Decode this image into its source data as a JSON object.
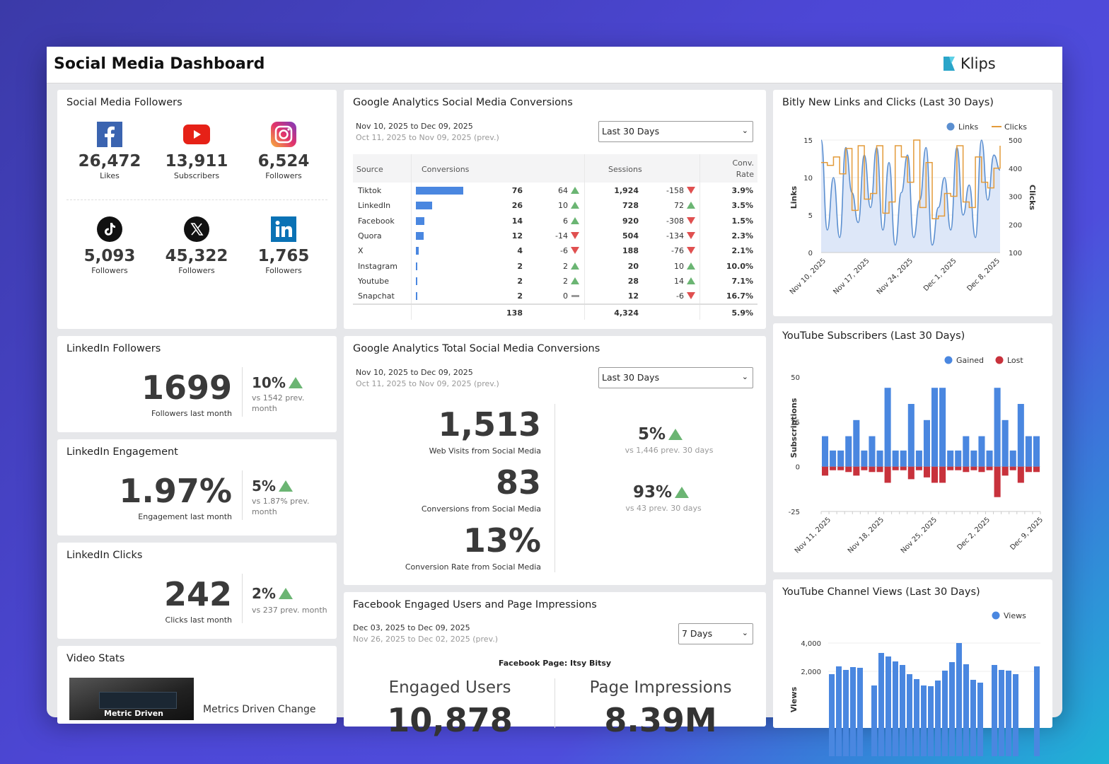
{
  "app": {
    "title": "Social Media Dashboard",
    "brand": "Klips"
  },
  "followers": {
    "title": "Social Media Followers",
    "items": [
      {
        "icon": "facebook-icon",
        "count": "26,472",
        "label": "Likes"
      },
      {
        "icon": "youtube-icon",
        "count": "13,911",
        "label": "Subscribers"
      },
      {
        "icon": "instagram-icon",
        "count": "6,524",
        "label": "Followers"
      },
      {
        "icon": "tiktok-icon",
        "count": "5,093",
        "label": "Followers"
      },
      {
        "icon": "x-icon",
        "count": "45,322",
        "label": "Followers"
      },
      {
        "icon": "linkedin-icon",
        "count": "1,765",
        "label": "Followers"
      }
    ]
  },
  "li_followers": {
    "title": "LinkedIn Followers",
    "value": "1699",
    "sub": "Followers last month",
    "pct": "10%",
    "vs": "vs 1542 prev. month"
  },
  "li_engagement": {
    "title": "LinkedIn Engagement",
    "value": "1.97%",
    "sub": "Engagement last month",
    "pct": "5%",
    "vs": "vs 1.87% prev. month"
  },
  "li_clicks": {
    "title": "LinkedIn Clicks",
    "value": "242",
    "sub": "Clicks last month",
    "pct": "2%",
    "vs": "vs 237 prev. month"
  },
  "video": {
    "title": "Video Stats",
    "thumb_text": "Metric Driven",
    "caption": "Metrics Driven Change"
  },
  "ga_conv": {
    "title": "Google Analytics Social Media Conversions",
    "date_current": "Nov 10, 2025 to Dec 09, 2025",
    "date_prev": "Oct 11, 2025 to  Nov 09, 2025 (prev.)",
    "select": "Last 30 Days",
    "headers": {
      "source": "Source",
      "conversions": "Conversions",
      "sessions": "Sessions",
      "rate1": "Conv.",
      "rate2": "Rate"
    },
    "rows": [
      {
        "source": "Tiktok",
        "conv": 76,
        "conv_delta": "64",
        "conv_dir": "up",
        "sessions": "1,924",
        "sess_delta": "-158",
        "sess_dir": "down",
        "rate": "3.9%"
      },
      {
        "source": "LinkedIn",
        "conv": 26,
        "conv_delta": "10",
        "conv_dir": "up",
        "sessions": "728",
        "sess_delta": "72",
        "sess_dir": "up",
        "rate": "3.5%"
      },
      {
        "source": "Facebook",
        "conv": 14,
        "conv_delta": "6",
        "conv_dir": "up",
        "sessions": "920",
        "sess_delta": "-308",
        "sess_dir": "down",
        "rate": "1.5%"
      },
      {
        "source": "Quora",
        "conv": 12,
        "conv_delta": "-14",
        "conv_dir": "down",
        "sessions": "504",
        "sess_delta": "-134",
        "sess_dir": "down",
        "rate": "2.3%"
      },
      {
        "source": "X",
        "conv": 4,
        "conv_delta": "-6",
        "conv_dir": "down",
        "sessions": "188",
        "sess_delta": "-76",
        "sess_dir": "down",
        "rate": "2.1%"
      },
      {
        "source": "Instagram",
        "conv": 2,
        "conv_delta": "2",
        "conv_dir": "up",
        "sessions": "20",
        "sess_delta": "10",
        "sess_dir": "up",
        "rate": "10.0%"
      },
      {
        "source": "Youtube",
        "conv": 2,
        "conv_delta": "2",
        "conv_dir": "up",
        "sessions": "28",
        "sess_delta": "14",
        "sess_dir": "up",
        "rate": "7.1%"
      },
      {
        "source": "Snapchat",
        "conv": 2,
        "conv_delta": "0",
        "conv_dir": "flat",
        "sessions": "12",
        "sess_delta": "-6",
        "sess_dir": "down",
        "rate": "16.7%"
      }
    ],
    "totals": {
      "conv": "138",
      "sessions": "4,324",
      "rate": "5.9%"
    }
  },
  "ga_total": {
    "title": "Google Analytics Total Social Media Conversions",
    "date_current": "Nov 10, 2025 to Dec 09, 2025",
    "date_prev": "Oct 11, 2025 to  Nov 09, 2025 (prev.)",
    "select": "Last 30 Days",
    "kpis": [
      {
        "value": "1,513",
        "label": "Web Visits from Social Media",
        "pct": "5%",
        "vs": "vs 1,446 prev. 30 days"
      },
      {
        "value": "83",
        "label": "Conversions from Social Media",
        "pct": "93%",
        "vs": "vs 43 prev. 30 days"
      },
      {
        "value": "13%",
        "label": "Conversion Rate from Social Media"
      }
    ]
  },
  "fb": {
    "title": "Facebook Engaged Users and Page Impressions",
    "date_current": "Dec 03, 2025  to Dec 09, 2025",
    "date_prev": "Nov 26, 2025 to Dec 02, 2025 (prev.)",
    "select": "7 Days",
    "page": "Facebook Page: Itsy Bitsy",
    "engaged_label": "Engaged Users",
    "impressions_label": "Page Impressions",
    "engaged_value": "10,878",
    "impressions_value": "8.39M"
  },
  "bitly": {
    "title": "Bitly New Links and Clicks (Last 30 Days)",
    "legend_links": "Links",
    "legend_clicks": "Clicks",
    "ylabel_left": "Links",
    "ylabel_right": "Clicks",
    "yleft_ticks": [
      "15",
      "10",
      "5",
      "0"
    ],
    "yright_ticks": [
      "500",
      "400",
      "300",
      "200",
      "100"
    ],
    "xticks": [
      "Nov 10, 2025",
      "Nov 17, 2025",
      "Nov 24, 2025",
      "Dec 1, 2025",
      "Dec 8, 2025"
    ]
  },
  "yt_subs": {
    "title": "YouTube Subscribers (Last 30 Days)",
    "legend_gained": "Gained",
    "legend_lost": "Lost",
    "ylabel": "Subscriptions",
    "yticks": [
      "50",
      "25",
      "0",
      "-25"
    ],
    "xticks": [
      "Nov 11, 2025",
      "Nov 18, 2025",
      "Nov 25, 2025",
      "Dec 2, 2025",
      "Dec 9, 2025"
    ]
  },
  "yt_views": {
    "title": "YouTube Channel Views (Last 30 Days)",
    "legend": "Views",
    "ylabel": "Views",
    "yticks": [
      "4,000",
      "2,000"
    ]
  },
  "chart_data": [
    {
      "type": "line",
      "title": "Bitly New Links and Clicks (Last 30 Days)",
      "ylabel": "Links",
      "y2label": "Clicks",
      "ylim": [
        0,
        15
      ],
      "y2lim": [
        100,
        500
      ],
      "xticks": [
        "Nov 10, 2025",
        "Nov 17, 2025",
        "Nov 24, 2025",
        "Dec 1, 2025",
        "Dec 8, 2025"
      ],
      "legend": "top-right",
      "series": [
        {
          "name": "Links",
          "axis": "left",
          "color": "#5b8fd0",
          "values": [
            15,
            3,
            10,
            2,
            14,
            8,
            4,
            13,
            6,
            14,
            3,
            12,
            1,
            8,
            13,
            2,
            7,
            14,
            1,
            6,
            10,
            3,
            14,
            5,
            9,
            2,
            15,
            7,
            13,
            11
          ]
        },
        {
          "name": "Clicks",
          "axis": "right",
          "color": "#e39b3a",
          "values": [
            420,
            410,
            440,
            380,
            470,
            250,
            480,
            290,
            310,
            480,
            240,
            280,
            480,
            440,
            350,
            500,
            260,
            420,
            220,
            230,
            310,
            300,
            480,
            280,
            260,
            440,
            350,
            330,
            400,
            480
          ]
        }
      ]
    },
    {
      "type": "bar",
      "title": "YouTube Subscribers (Last 30 Days)",
      "ylabel": "Subscriptions",
      "ylim": [
        -25,
        50
      ],
      "xticks": [
        "Nov 11, 2025",
        "Nov 18, 2025",
        "Nov 25, 2025",
        "Dec 2, 2025",
        "Dec 9, 2025"
      ],
      "legend": "top-right",
      "series": [
        {
          "name": "Gained",
          "color": "#4a87e0",
          "values": [
            17,
            9,
            9,
            17,
            26,
            9,
            17,
            9,
            44,
            9,
            9,
            35,
            9,
            26,
            44,
            44,
            9,
            9,
            17,
            9,
            17,
            9,
            44,
            26,
            9,
            35,
            17,
            17
          ]
        },
        {
          "name": "Lost",
          "color": "#c8323c",
          "values": [
            -5,
            -2,
            -2,
            -3,
            -5,
            -2,
            -3,
            -3,
            -9,
            -2,
            -2,
            -7,
            -2,
            -6,
            -9,
            -9,
            -2,
            -2,
            -3,
            -2,
            -3,
            -2,
            -17,
            -5,
            -2,
            -9,
            -3,
            -3
          ]
        }
      ]
    },
    {
      "type": "bar",
      "title": "YouTube Channel Views (Last 30 Days)",
      "ylabel": "Views",
      "ylim": [
        0,
        4500
      ],
      "legend": "top-right",
      "series": [
        {
          "name": "Views",
          "color": "#4a87e0",
          "values": [
            1800,
            2350,
            2100,
            2300,
            2250,
            0,
            1000,
            3300,
            3050,
            2700,
            2450,
            1800,
            1450,
            1000,
            950,
            1350,
            2050,
            2650,
            4000,
            2500,
            1400,
            1200,
            0,
            2450,
            2100,
            2050,
            1800,
            0,
            0,
            2350
          ]
        }
      ]
    }
  ]
}
